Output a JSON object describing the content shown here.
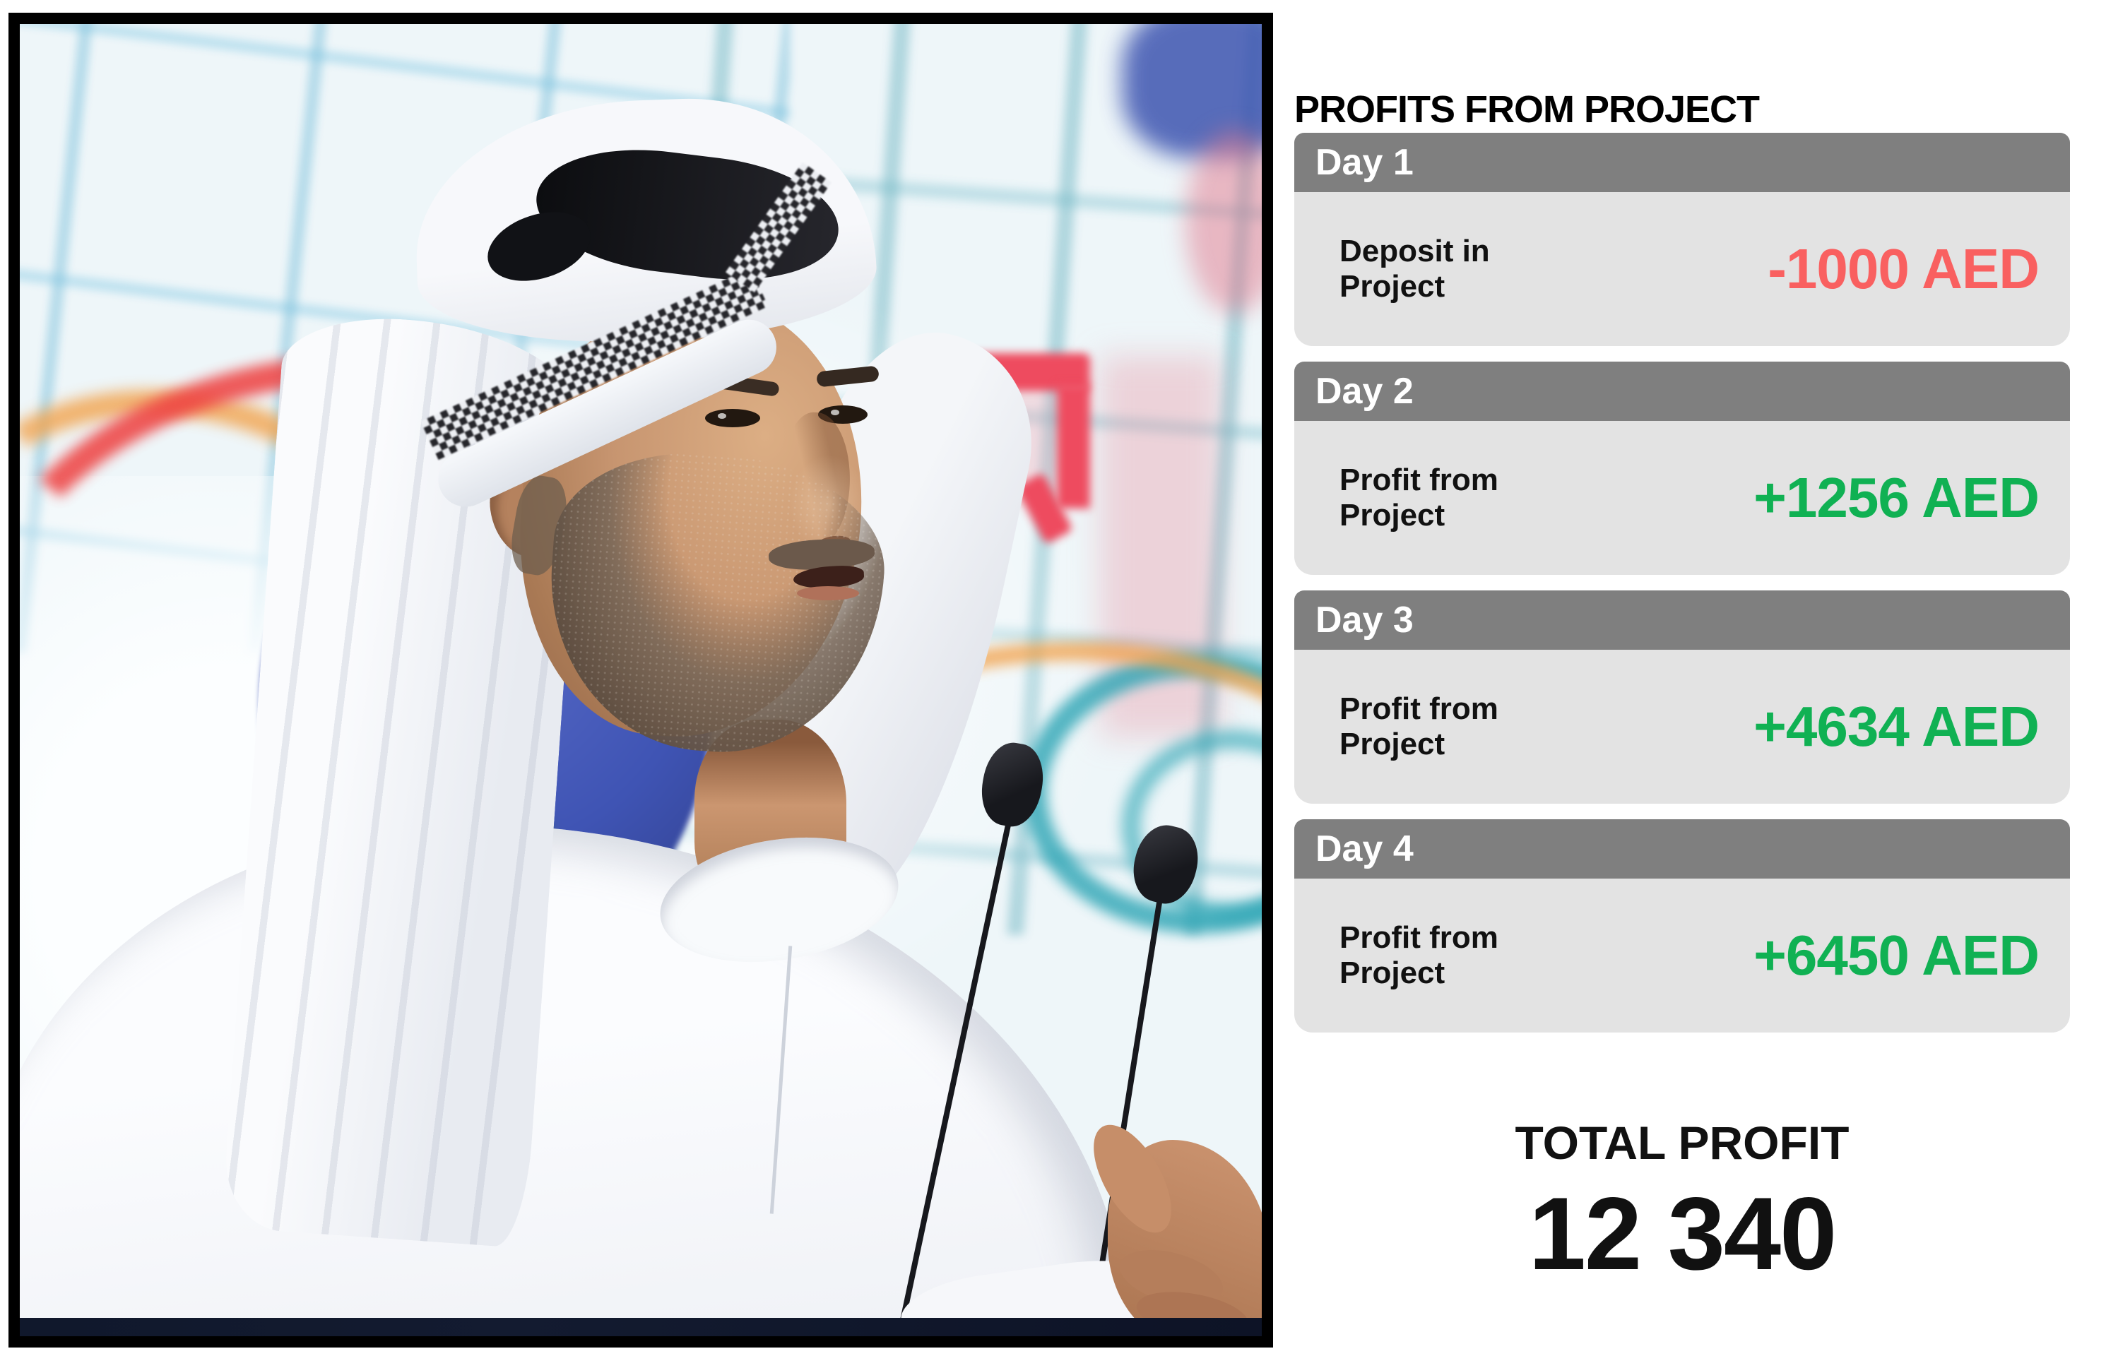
{
  "photo": {
    "description": "Man in traditional white Emirati kandura and ghutra headdress speaking into two slim black microphones in front of a blurred colorful mural with light-blue grid lines, a red arch shape, a dark blue circle and teal swirls",
    "palette": {
      "frame": "#000000",
      "wall": "#eef6f9",
      "curve_red": "#ee4040",
      "curve_orange": "#f2a24b",
      "arch_red": "#ee4b5f",
      "circle_blue": "#3f54b4",
      "blob_red": "#df4030",
      "navy_blob": "#3d54b0",
      "swirl_teal": "#2ba4b4",
      "ghutra": "#f7f8fb",
      "fold_black": "#26262b",
      "robe": "#fbfcfe",
      "mic_black": "#17181d",
      "strip_navy": "#131b30"
    }
  },
  "panel": {
    "title": "PROFITS FROM PROJECT",
    "days": [
      {
        "label": "Day 1",
        "item": "Deposit in Project",
        "amount": "-1000 AED",
        "value": -1000,
        "direction": "negative"
      },
      {
        "label": "Day 2",
        "item": "Profit from Project",
        "amount": "+1256 AED",
        "value": 1256,
        "direction": "positive"
      },
      {
        "label": "Day 3",
        "item": "Profit from Project",
        "amount": "+4634 AED",
        "value": 4634,
        "direction": "positive"
      },
      {
        "label": "Day 4",
        "item": "Profit from Project",
        "amount": "+6450 AED",
        "value": 6450,
        "direction": "positive"
      }
    ],
    "total": {
      "label": "TOTAL PROFIT",
      "value": "12 340"
    },
    "colors": {
      "header_bg": "#7f7f7f",
      "header_text": "#ffffff",
      "card_bg": "#e3e3e3",
      "text": "#111111",
      "negative": "#f96060",
      "positive": "#10b153"
    }
  },
  "chart_data": {
    "type": "table",
    "title": "PROFITS FROM PROJECT",
    "categories": [
      "Day 1",
      "Day 2",
      "Day 3",
      "Day 4"
    ],
    "values": [
      -1000,
      1256,
      4634,
      6450
    ],
    "labels": [
      "Deposit in Project",
      "Profit from Project",
      "Profit from Project",
      "Profit from Project"
    ],
    "currency": "AED",
    "total_label": "TOTAL PROFIT",
    "total_value": 12340
  }
}
